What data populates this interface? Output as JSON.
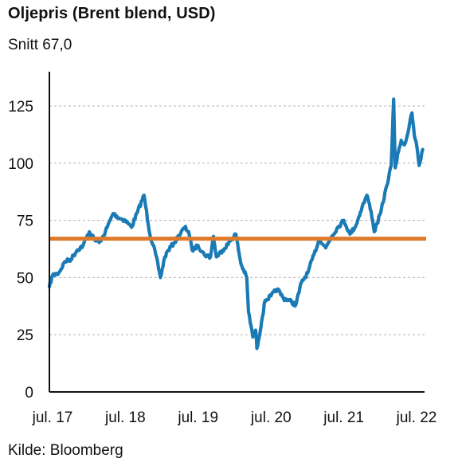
{
  "title": "Oljepris (Brent blend, USD)",
  "subtitle": "Snitt 67,0",
  "source": "Kilde: Bloomberg",
  "colors": {
    "series": "#1a7ab5",
    "average": "#dd7a2b",
    "grid": "#b3b3b3",
    "axis": "#111111"
  },
  "chart_data": {
    "type": "line",
    "title": "Oljepris (Brent blend, USD)",
    "subtitle": "Snitt 67,0",
    "xlabel": "",
    "ylabel": "",
    "ylim": [
      0,
      140
    ],
    "xlim": [
      "2017-06-15",
      "2022-08-10"
    ],
    "y_ticks": [
      0,
      25,
      50,
      75,
      100,
      125
    ],
    "x_ticks": [
      {
        "label": "jul. 17",
        "date": "2017-07-01"
      },
      {
        "label": "jul. 18",
        "date": "2018-07-01"
      },
      {
        "label": "jul. 19",
        "date": "2019-07-01"
      },
      {
        "label": "jul. 20",
        "date": "2020-07-01"
      },
      {
        "label": "jul. 21",
        "date": "2021-07-01"
      },
      {
        "label": "jul. 22",
        "date": "2022-07-01"
      }
    ],
    "grid": true,
    "average_line": {
      "label": "Snitt 67,0",
      "value": 67.0
    },
    "series": [
      {
        "x": [
          "2017-06-15",
          "2017-07-01",
          "2017-08-01",
          "2017-09-01",
          "2017-10-01",
          "2017-11-01",
          "2017-12-01",
          "2018-01-01",
          "2018-02-01",
          "2018-03-01",
          "2018-04-01",
          "2018-05-01",
          "2018-06-01",
          "2018-07-01",
          "2018-08-01",
          "2018-09-01",
          "2018-10-03",
          "2018-11-01",
          "2018-12-01",
          "2018-12-24",
          "2019-01-15",
          "2019-02-01",
          "2019-03-01",
          "2019-04-25",
          "2019-05-15",
          "2019-06-01",
          "2019-07-01",
          "2019-08-01",
          "2019-09-01",
          "2019-09-16",
          "2019-10-01",
          "2019-11-01",
          "2019-12-01",
          "2020-01-06",
          "2020-02-01",
          "2020-03-01",
          "2020-03-10",
          "2020-04-01",
          "2020-04-15",
          "2020-04-21",
          "2020-04-28",
          "2020-05-15",
          "2020-06-01",
          "2020-07-01",
          "2020-08-01",
          "2020-09-01",
          "2020-10-01",
          "2020-11-02",
          "2020-12-01",
          "2021-01-01",
          "2021-02-01",
          "2021-03-01",
          "2021-04-01",
          "2021-05-01",
          "2021-06-01",
          "2021-07-01",
          "2021-08-01",
          "2021-09-01",
          "2021-10-01",
          "2021-10-25",
          "2021-11-15",
          "2021-12-01",
          "2022-01-01",
          "2022-02-01",
          "2022-02-24",
          "2022-03-08",
          "2022-03-16",
          "2022-04-01",
          "2022-04-15",
          "2022-05-01",
          "2022-05-15",
          "2022-06-08",
          "2022-06-20",
          "2022-07-01",
          "2022-07-14",
          "2022-08-01"
        ],
        "values": [
          46,
          51,
          52,
          57,
          58,
          62,
          64,
          70,
          66,
          66,
          72,
          78,
          76,
          75,
          72,
          79,
          86,
          69,
          60,
          50,
          59,
          62,
          65,
          72,
          70,
          62,
          64,
          60,
          59,
          68,
          59,
          62,
          65,
          69,
          56,
          50,
          35,
          24,
          27,
          19,
          22,
          31,
          40,
          42,
          45,
          41,
          40,
          38,
          48,
          52,
          60,
          67,
          63,
          68,
          72,
          75,
          69,
          73,
          81,
          86,
          79,
          70,
          78,
          90,
          99,
          128,
          98,
          105,
          110,
          108,
          112,
          122,
          112,
          108,
          99,
          106
        ]
      }
    ]
  }
}
